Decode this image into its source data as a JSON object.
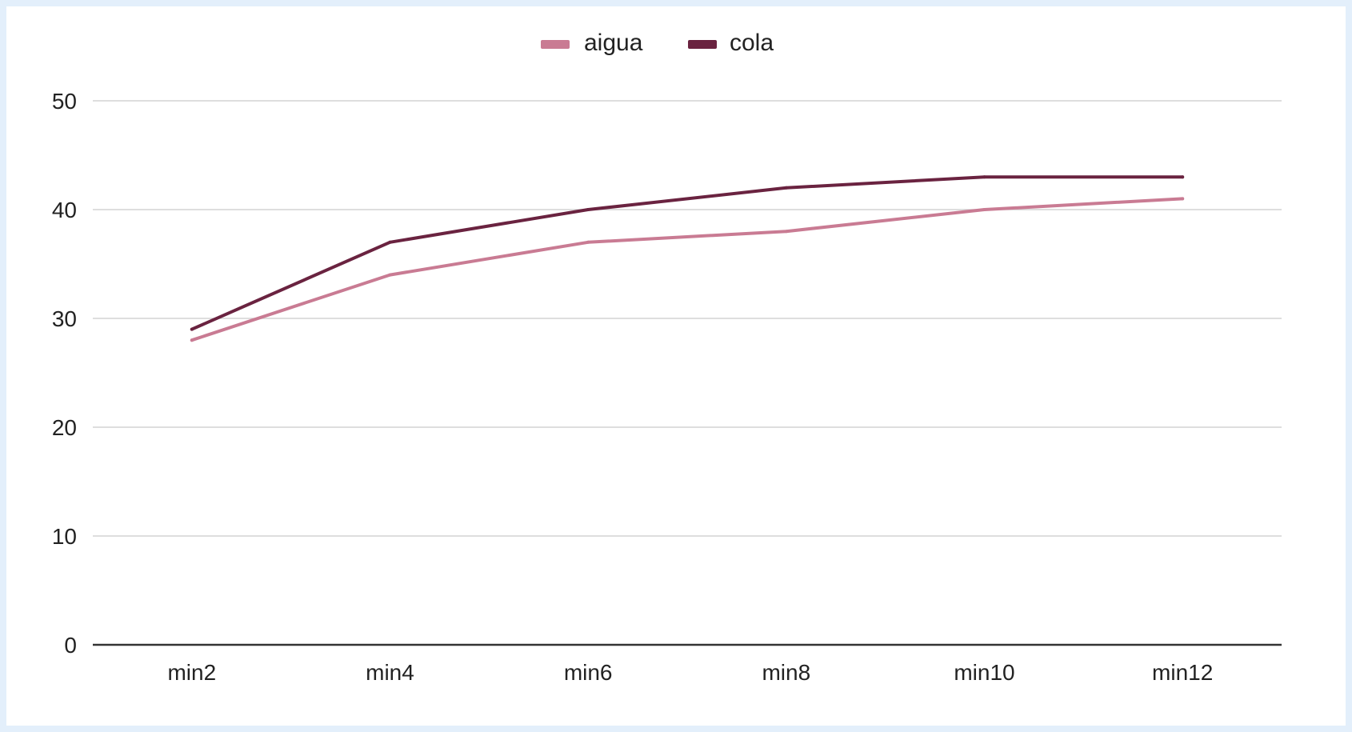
{
  "chart_data": {
    "type": "line",
    "title": "",
    "xlabel": "",
    "ylabel": "",
    "categories": [
      "min2",
      "min4",
      "min6",
      "min8",
      "min10",
      "min12"
    ],
    "ylim": [
      0,
      50
    ],
    "yticks": [
      0,
      10,
      20,
      30,
      40,
      50
    ],
    "grid": true,
    "legend_position": "top",
    "series": [
      {
        "name": "aigua",
        "color": "#c97b93",
        "values": [
          28,
          34,
          37,
          38,
          40,
          41
        ]
      },
      {
        "name": "cola",
        "color": "#6a2340",
        "values": [
          29,
          37,
          40,
          42,
          43,
          43
        ]
      }
    ]
  }
}
